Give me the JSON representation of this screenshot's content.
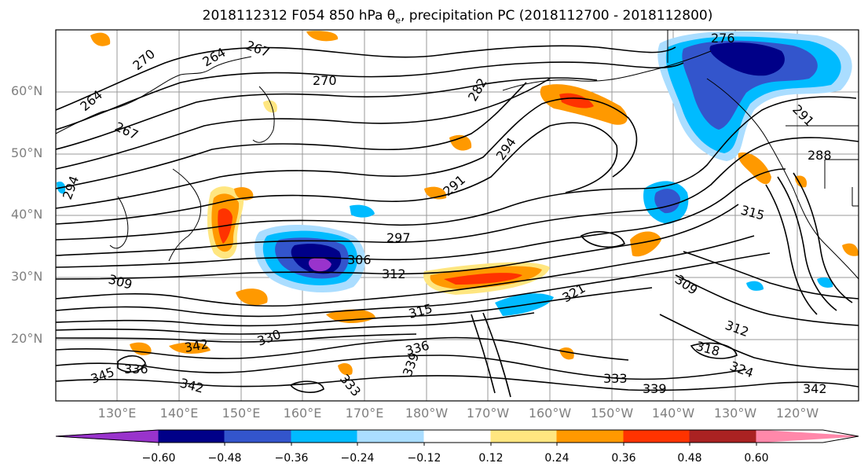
{
  "title": {
    "prefix": "2018112312 F054 850 hPa θ",
    "sub": "e",
    "suffix": ", precipitation PC (2018112700 - 2018112800)"
  },
  "map": {
    "lat_labels": [
      "60°N",
      "50°N",
      "40°N",
      "30°N",
      "20°N"
    ],
    "lon_labels": [
      "130°E",
      "140°E",
      "150°E",
      "160°E",
      "170°E",
      "180°W",
      "170°W",
      "160°W",
      "150°W",
      "140°W",
      "130°W",
      "120°W"
    ],
    "contour_labels": [
      "264",
      "267",
      "270",
      "270",
      "264",
      "267",
      "282",
      "294",
      "291",
      "297",
      "306",
      "312",
      "309",
      "276",
      "291",
      "288",
      "315",
      "309",
      "312",
      "318",
      "324",
      "321",
      "315",
      "330",
      "336",
      "339",
      "342",
      "342",
      "333",
      "339",
      "342",
      "333",
      "345",
      "336",
      "294"
    ]
  },
  "colorbar": {
    "colors": [
      "#9933cc",
      "#000088",
      "#3355cc",
      "#00bbff",
      "#aaddff",
      "#ffffff",
      "#ffe680",
      "#ff9900",
      "#ff3300",
      "#aa2222",
      "#ff88aa"
    ],
    "tick_labels": [
      "−0.60",
      "−0.48",
      "−0.36",
      "−0.24",
      "−0.12",
      "0.12",
      "0.24",
      "0.36",
      "0.48",
      "0.60"
    ]
  }
}
